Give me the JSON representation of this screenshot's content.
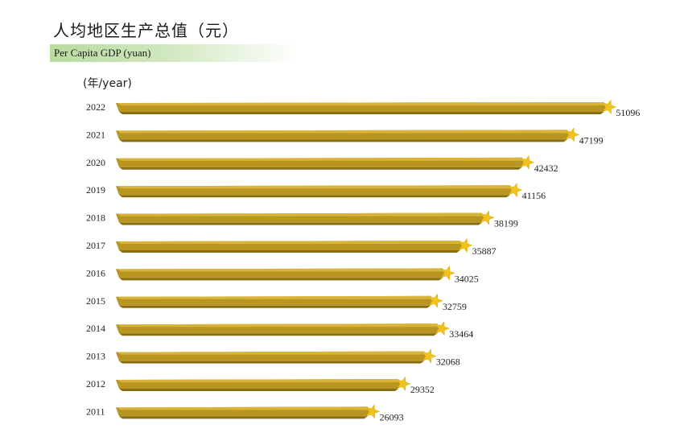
{
  "header": {
    "title": "人均地区生产总值（元）",
    "subtitle": "Per Capita GDP (yuan)",
    "unit_label": "(年/year)"
  },
  "colors": {
    "bar_top": "#d8b53a",
    "bar_body": "#b8961f",
    "bar_shadow": "#8a6d12",
    "star": "#f2c21c",
    "subtitle_band": "#c6e3b0"
  },
  "chart_data": {
    "type": "bar",
    "orientation": "horizontal",
    "title": "人均地区生产总值（元）",
    "subtitle": "Per Capita GDP (yuan)",
    "ylabel": "(年/year)",
    "xlabel": "",
    "categories": [
      "2022",
      "2021",
      "2020",
      "2019",
      "2018",
      "2017",
      "2016",
      "2015",
      "2014",
      "2013",
      "2012",
      "2011"
    ],
    "values": [
      51096,
      47199,
      42432,
      41156,
      38199,
      35887,
      34025,
      32759,
      33464,
      32068,
      29352,
      26093
    ],
    "data_labels": [
      "51096",
      "47199",
      "42432",
      "41156",
      "38199",
      "35887",
      "34025",
      "32759",
      "33464",
      "32068",
      "29352",
      "26093"
    ],
    "grid": false,
    "legend": "none"
  }
}
